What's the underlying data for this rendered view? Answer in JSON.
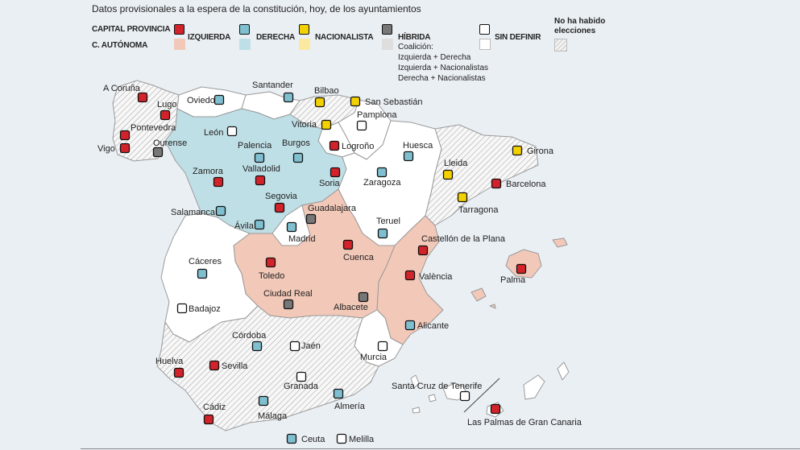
{
  "title": "Datos provisionales a la espera de la constitución, hoy, de los ayuntamientos",
  "legend": {
    "capital_label": "CAPITAL PROVINCIA",
    "region_label": "C. AUTÓNOMA",
    "items": [
      {
        "key": "izq",
        "label": "IZQUIERDA",
        "capital_color": "#d2232a",
        "region_color": "#f2c8b8"
      },
      {
        "key": "der",
        "label": "DERECHA",
        "capital_color": "#7fbfcf",
        "region_color": "#bfdfe6"
      },
      {
        "key": "nac",
        "label": "NACIONALISTA",
        "capital_color": "#f3d100",
        "region_color": "#fbe9a0"
      },
      {
        "key": "hib",
        "label": "HÍBRIDA",
        "capital_color": "#777777",
        "region_color": "#dedede"
      },
      {
        "key": "sd",
        "label": "SIN DEFINIR",
        "capital_color": "#ffffff",
        "region_color": "#ffffff"
      }
    ],
    "coalition_lines": [
      "Coalición:",
      "Izquierda + Derecha",
      "Izquierda + Nacionalistas",
      "Derecha + Nacionalistas"
    ],
    "no_elections_lines": [
      "No ha habido",
      "elecciones"
    ]
  },
  "colors": {
    "background": "#eaeff4",
    "border": "#9a9a9a",
    "hatch": "#9a9a9a"
  },
  "cities": [
    {
      "name": "A Coruña",
      "party": "izq"
    },
    {
      "name": "Lugo",
      "party": "izq"
    },
    {
      "name": "Pontevedra",
      "party": "izq"
    },
    {
      "name": "Vigo",
      "party": "izq"
    },
    {
      "name": "Ourense",
      "party": "hib"
    },
    {
      "name": "Oviedo",
      "party": "der"
    },
    {
      "name": "Santander",
      "party": "der"
    },
    {
      "name": "Bilbao",
      "party": "nac"
    },
    {
      "name": "San Sebastián",
      "party": "nac"
    },
    {
      "name": "Vitoria",
      "party": "nac"
    },
    {
      "name": "Pamplona",
      "party": "sd"
    },
    {
      "name": "León",
      "party": "sd"
    },
    {
      "name": "Palencia",
      "party": "der"
    },
    {
      "name": "Burgos",
      "party": "der"
    },
    {
      "name": "Logroño",
      "party": "izq"
    },
    {
      "name": "Huesca",
      "party": "der"
    },
    {
      "name": "Girona",
      "party": "nac"
    },
    {
      "name": "Lleida",
      "party": "nac"
    },
    {
      "name": "Barcelona",
      "party": "izq"
    },
    {
      "name": "Tarragona",
      "party": "nac"
    },
    {
      "name": "Zamora",
      "party": "izq"
    },
    {
      "name": "Valladolid",
      "party": "izq"
    },
    {
      "name": "Soria",
      "party": "izq"
    },
    {
      "name": "Zaragoza",
      "party": "der"
    },
    {
      "name": "Segovia",
      "party": "izq"
    },
    {
      "name": "Salamanca",
      "party": "der"
    },
    {
      "name": "Guadalajara",
      "party": "hib"
    },
    {
      "name": "Ávila",
      "party": "der"
    },
    {
      "name": "Madrid",
      "party": "der"
    },
    {
      "name": "Teruel",
      "party": "der"
    },
    {
      "name": "Castellón de la Plana",
      "party": "izq"
    },
    {
      "name": "Cáceres",
      "party": "der"
    },
    {
      "name": "Toledo",
      "party": "izq"
    },
    {
      "name": "Cuenca",
      "party": "izq"
    },
    {
      "name": "València",
      "party": "izq"
    },
    {
      "name": "Palma",
      "party": "izq"
    },
    {
      "name": "Badajoz",
      "party": "sd"
    },
    {
      "name": "Ciudad Real",
      "party": "hib"
    },
    {
      "name": "Albacete",
      "party": "hib"
    },
    {
      "name": "Alicante",
      "party": "der"
    },
    {
      "name": "Córdoba",
      "party": "der"
    },
    {
      "name": "Jaén",
      "party": "sd"
    },
    {
      "name": "Murcia",
      "party": "sd"
    },
    {
      "name": "Huelva",
      "party": "izq"
    },
    {
      "name": "Sevilla",
      "party": "izq"
    },
    {
      "name": "Granada",
      "party": "sd"
    },
    {
      "name": "Santa Cruz de Tenerife",
      "party": "sd"
    },
    {
      "name": "Cádiz",
      "party": "izq"
    },
    {
      "name": "Málaga",
      "party": "der"
    },
    {
      "name": "Almería",
      "party": "der"
    },
    {
      "name": "Las Palmas de Gran Canaria",
      "party": "izq"
    },
    {
      "name": "Ceuta",
      "party": "der"
    },
    {
      "name": "Melilla",
      "party": "sd"
    }
  ]
}
